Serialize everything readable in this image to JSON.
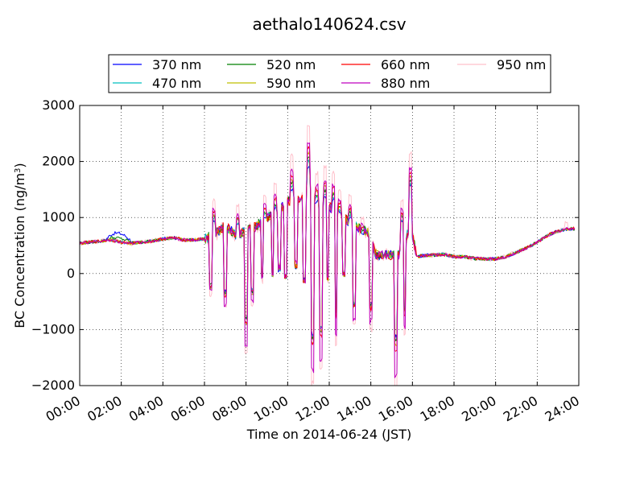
{
  "chart_data": {
    "type": "line",
    "title": "aethalo140624.csv",
    "xlabel": "Time on 2014-06-24 (JST)",
    "ylabel_main": "BC Concentration (ng/m",
    "ylabel_sup": "3",
    "ylabel_close": ")",
    "xlim": [
      "00:00",
      "24:00"
    ],
    "ylim": [
      -2000,
      3000
    ],
    "x_ticks": [
      "00:00",
      "02:00",
      "04:00",
      "06:00",
      "08:00",
      "10:00",
      "12:00",
      "14:00",
      "16:00",
      "18:00",
      "20:00",
      "22:00",
      "24:00"
    ],
    "y_ticks": [
      "−2000",
      "−1000",
      "0",
      "1000",
      "2000",
      "3000"
    ],
    "grid": true,
    "legend_placement": "top-center",
    "series": [
      {
        "name": "370 nm",
        "color": "#0000ff"
      },
      {
        "name": "470 nm",
        "color": "#00bfbf"
      },
      {
        "name": "520 nm",
        "color": "#008000"
      },
      {
        "name": "590 nm",
        "color": "#bfbf00"
      },
      {
        "name": "660 nm",
        "color": "#ff0000"
      },
      {
        "name": "880 nm",
        "color": "#bf00bf"
      },
      {
        "name": "950 nm",
        "color": "#ffc0cb"
      }
    ],
    "base_profile": [
      [
        0.0,
        540
      ],
      [
        0.5,
        560
      ],
      [
        1.0,
        580
      ],
      [
        1.5,
        600
      ],
      [
        2.0,
        560
      ],
      [
        2.5,
        540
      ],
      [
        3.0,
        560
      ],
      [
        3.5,
        580
      ],
      [
        4.0,
        620
      ],
      [
        4.5,
        640
      ],
      [
        5.0,
        600
      ],
      [
        5.5,
        600
      ],
      [
        6.0,
        620
      ],
      [
        6.5,
        700
      ],
      [
        7.0,
        850
      ],
      [
        7.5,
        700
      ],
      [
        8.0,
        750
      ],
      [
        8.5,
        850
      ],
      [
        9.0,
        1000
      ],
      [
        9.5,
        1100
      ],
      [
        10.0,
        1300
      ],
      [
        10.5,
        1300
      ],
      [
        11.0,
        1450
      ],
      [
        11.5,
        1200
      ],
      [
        12.0,
        1200
      ],
      [
        12.5,
        1050
      ],
      [
        13.0,
        900
      ],
      [
        13.5,
        800
      ],
      [
        14.0,
        700
      ],
      [
        14.2,
        350
      ],
      [
        14.5,
        320
      ],
      [
        15.0,
        330
      ],
      [
        15.5,
        350
      ],
      [
        15.9,
        900
      ],
      [
        16.2,
        300
      ],
      [
        16.5,
        320
      ],
      [
        17.0,
        330
      ],
      [
        17.5,
        340
      ],
      [
        18.0,
        300
      ],
      [
        18.5,
        300
      ],
      [
        19.0,
        270
      ],
      [
        19.5,
        260
      ],
      [
        20.0,
        260
      ],
      [
        20.5,
        300
      ],
      [
        21.0,
        380
      ],
      [
        21.5,
        460
      ],
      [
        22.0,
        560
      ],
      [
        22.5,
        680
      ],
      [
        23.0,
        760
      ],
      [
        23.5,
        800
      ],
      [
        23.8,
        800
      ]
    ],
    "spikes_down": [
      [
        6.3,
        -300
      ],
      [
        7.0,
        -500
      ],
      [
        7.6,
        -350
      ],
      [
        8.0,
        -1150
      ],
      [
        8.3,
        -450
      ],
      [
        8.8,
        -100
      ],
      [
        9.3,
        0
      ],
      [
        9.6,
        100
      ],
      [
        9.9,
        -50
      ],
      [
        10.4,
        200
      ],
      [
        10.8,
        -150
      ],
      [
        11.2,
        -1600
      ],
      [
        11.6,
        -1400
      ],
      [
        11.9,
        -100
      ],
      [
        12.3,
        -1000
      ],
      [
        12.7,
        0
      ],
      [
        13.2,
        -750
      ],
      [
        13.6,
        -1200
      ],
      [
        14.0,
        -800
      ],
      [
        15.2,
        -1700
      ],
      [
        15.6,
        -900
      ]
    ],
    "spikes_up": [
      [
        6.45,
        1300
      ],
      [
        7.6,
        1200
      ],
      [
        8.9,
        1400
      ],
      [
        9.4,
        1600
      ],
      [
        10.2,
        2100
      ],
      [
        11.0,
        2650
      ],
      [
        11.4,
        1800
      ],
      [
        11.8,
        1900
      ],
      [
        12.2,
        1800
      ],
      [
        12.5,
        1500
      ],
      [
        13.0,
        1400
      ],
      [
        13.6,
        1000
      ],
      [
        15.5,
        1300
      ],
      [
        15.9,
        2150
      ],
      [
        23.4,
        900
      ]
    ]
  }
}
